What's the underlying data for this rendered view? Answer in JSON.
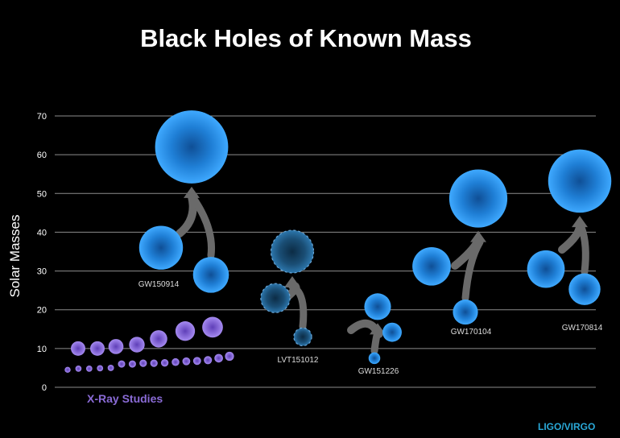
{
  "chart_data": {
    "type": "scatter",
    "title": "Black Holes of Known Mass",
    "ylabel": "Solar Masses",
    "xlabel": "",
    "ylim": [
      0,
      70
    ],
    "yticks": [
      0,
      10,
      20,
      30,
      40,
      50,
      60,
      70
    ],
    "grid": true,
    "credit": "LIGO/VIRGO",
    "xray": {
      "label": "X-Ray Studies",
      "color": "#8a6bd6",
      "masses_upper": [
        10,
        10,
        10.5,
        11,
        12.5,
        14.5,
        15.5
      ],
      "masses_lower": [
        4.5,
        4.8,
        4.8,
        4.9,
        5,
        6,
        6,
        6.2,
        6.2,
        6.3,
        6.5,
        6.7,
        6.8,
        7,
        7.5,
        8
      ]
    },
    "events": [
      {
        "name": "GW150914",
        "primary": 36,
        "secondary": 29,
        "final": 62,
        "confidence": "confirmed"
      },
      {
        "name": "LVT151012",
        "primary": 23,
        "secondary": 13,
        "final": 35,
        "confidence": "candidate"
      },
      {
        "name": "GW151226",
        "primary": 14.2,
        "secondary": 7.5,
        "final": 20.8,
        "confidence": "confirmed"
      },
      {
        "name": "GW170104",
        "primary": 31.2,
        "secondary": 19.4,
        "final": 48.7,
        "confidence": "confirmed"
      },
      {
        "name": "GW170814",
        "primary": 30.5,
        "secondary": 25.3,
        "final": 53.2,
        "confidence": "confirmed"
      }
    ],
    "colors": {
      "confirmed": "#2a8fe6",
      "candidate": "#1f5f8f",
      "grid": "#8c8c8c",
      "arrow": "#6a6a6a",
      "text": "#ffffff",
      "credit": "#2aa9d8"
    }
  }
}
